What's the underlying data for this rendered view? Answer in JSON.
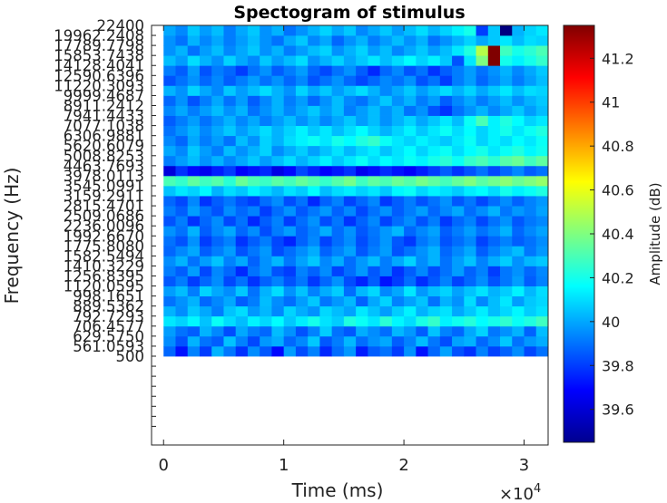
{
  "chart_data": {
    "type": "heatmap",
    "title": "Spectogram of stimulus",
    "xlabel": "Time (ms)",
    "ylabel": "Frequency (Hz)",
    "x_exponent_label": "×10",
    "x_exponent_power": "4",
    "x_tick_labels": [
      "0",
      "1",
      "2",
      "3"
    ],
    "x_tick_values": [
      0,
      10000,
      20000,
      30000
    ],
    "xlim": [
      -1000,
      32000
    ],
    "x_bin_edges": [
      0,
      1000,
      2000,
      3000,
      4000,
      5000,
      6000,
      7000,
      8000,
      9000,
      10000,
      11000,
      12000,
      13000,
      14000,
      15000,
      16000,
      17000,
      18000,
      19000,
      20000,
      21000,
      22000,
      23000,
      24000,
      25000,
      26000,
      27000,
      28000,
      29000,
      30000,
      31000,
      32000
    ],
    "y_tick_labels": [
      "500",
      "561.0593",
      "629.5750",
      "706.4577",
      "792.7293",
      "889.5362",
      "998.1651",
      "1120.0595",
      "1256.8395",
      "1410.3229",
      "1582.5494",
      "1775.8080",
      "1992.6670",
      "2236.0096",
      "2509.0686",
      "2815.4701",
      "3159.2911",
      "3545.0991",
      "3978.0113",
      "4463.7693",
      "5008.8253",
      "5620.6079",
      "6306.9881",
      "7077.1038",
      "7941.4433",
      "8911.2412",
      "9999.4687",
      "11220.3093",
      "12590.6396",
      "14128.4041",
      "15853.7438",
      "17789.7798",
      "19962.2408",
      "22400"
    ],
    "ylim_band_index": [
      0,
      33
    ],
    "y_axis_extra_ticks_below": 7,
    "colorbar": {
      "label": "Amplitude (dB)",
      "ticks": [
        39.6,
        39.8,
        40,
        40.2,
        40.4,
        40.6,
        40.8,
        41,
        41.2
      ],
      "range": [
        39.45,
        41.35
      ],
      "colormap": "jet"
    },
    "values": [
      [
        39.88,
        39.72,
        39.93,
        39.8,
        40.02,
        39.91,
        39.78,
        39.95,
        39.85,
        39.7,
        39.98,
        39.83,
        39.93,
        39.76,
        39.89,
        39.97,
        39.74,
        39.86,
        39.9,
        39.8,
        39.96,
        39.72,
        39.88,
        39.99,
        39.84,
        39.78,
        39.93,
        39.81,
        39.87,
        39.95,
        39.82,
        39.9
      ],
      [
        39.95,
        39.84,
        40.02,
        39.9,
        39.86,
        40.05,
        39.93,
        39.82,
        39.97,
        40.01,
        39.88,
        39.94,
        40.06,
        39.85,
        39.92,
        40.03,
        39.89,
        39.96,
        40.0,
        39.86,
        39.93,
        40.04,
        39.91,
        39.83,
        39.99,
        40.02,
        39.88,
        39.95,
        40.06,
        39.9,
        39.97,
        40.01
      ],
      [
        39.98,
        39.9,
        39.86,
        40.02,
        39.94,
        39.83,
        40.0,
        39.92,
        39.88,
        40.04,
        39.96,
        39.84,
        39.93,
        40.07,
        39.9,
        39.85,
        40.01,
        39.95,
        39.89,
        40.03,
        39.97,
        39.86,
        40.05,
        39.93,
        39.88,
        40.0,
        40.08,
        39.91,
        39.96,
        40.02,
        39.87,
        40.04
      ],
      [
        40.12,
        40.08,
        40.15,
        40.05,
        40.18,
        40.1,
        40.04,
        40.14,
        40.09,
        40.16,
        40.06,
        40.13,
        40.2,
        40.11,
        40.07,
        40.22,
        40.18,
        40.12,
        40.24,
        40.15,
        40.1,
        40.21,
        40.26,
        40.14,
        40.19,
        40.23,
        40.16,
        40.2,
        40.25,
        40.18,
        40.22,
        40.28
      ],
      [
        40.02,
        39.95,
        40.06,
        40.0,
        39.92,
        40.05,
        40.1,
        39.97,
        40.03,
        39.94,
        40.08,
        40.01,
        39.96,
        40.09,
        40.04,
        39.99,
        40.12,
        40.05,
        39.98,
        40.07,
        40.14,
        40.02,
        40.08,
        40.11,
        40.0,
        40.06,
        40.13,
        40.04,
        40.09,
        40.15,
        40.07,
        40.11
      ],
      [
        39.9,
        39.96,
        40.02,
        39.88,
        39.94,
        40.0,
        39.86,
        39.92,
        40.04,
        39.95,
        39.89,
        39.98,
        40.06,
        39.91,
        39.97,
        40.03,
        39.87,
        40.0,
        40.08,
        39.93,
        39.99,
        40.05,
        39.9,
        40.02,
        39.96,
        40.1,
        39.94,
        40.04,
        40.12,
        39.98,
        40.06,
        40.09
      ],
      [
        39.98,
        40.04,
        39.92,
        40.08,
        40.0,
        39.95,
        40.06,
        39.9,
        40.02,
        40.1,
        39.96,
        40.05,
        39.93,
        40.01,
        40.07,
        39.89,
        40.03,
        40.09,
        39.94,
        40.0,
        40.12,
        39.97,
        40.04,
        40.08,
        39.99,
        40.05,
        40.11,
        40.02,
        40.07,
        40.14,
        40.03,
        40.1
      ],
      [
        39.85,
        39.92,
        39.8,
        39.88,
        39.95,
        39.82,
        39.9,
        39.78,
        39.87,
        39.93,
        39.84,
        39.91,
        39.79,
        39.88,
        39.96,
        39.83,
        39.75,
        39.86,
        39.72,
        39.8,
        39.89,
        39.77,
        39.85,
        39.93,
        39.81,
        39.88,
        39.95,
        39.84,
        39.91,
        39.98,
        39.86,
        39.93
      ],
      [
        39.92,
        39.86,
        39.98,
        39.82,
        39.94,
        39.88,
        39.76,
        39.9,
        39.96,
        39.84,
        39.8,
        39.93,
        39.87,
        39.95,
        39.81,
        39.89,
        39.97,
        39.85,
        39.92,
        39.78,
        39.86,
        39.94,
        39.83,
        39.9,
        39.98,
        39.87,
        39.93,
        39.8,
        39.91,
        39.96,
        39.88,
        39.94
      ],
      [
        39.95,
        40.02,
        39.9,
        39.98,
        40.05,
        39.93,
        40.0,
        39.87,
        39.96,
        40.03,
        39.91,
        39.99,
        40.06,
        39.94,
        40.01,
        39.89,
        39.97,
        40.04,
        39.92,
        40.0,
        40.08,
        39.95,
        40.02,
        39.9,
        39.98,
        40.05,
        39.93,
        40.01,
        40.07,
        39.96,
        40.03,
        40.06
      ],
      [
        39.88,
        39.94,
        40.0,
        39.86,
        39.92,
        39.98,
        39.84,
        39.91,
        39.97,
        39.83,
        39.89,
        39.95,
        40.01,
        39.87,
        39.93,
        39.99,
        39.85,
        39.92,
        39.98,
        39.84,
        39.9,
        39.96,
        40.02,
        39.88,
        39.94,
        40.0,
        39.86,
        39.93,
        39.99,
        40.04,
        39.91,
        39.97
      ],
      [
        39.9,
        39.84,
        39.96,
        39.8,
        39.88,
        39.93,
        39.78,
        39.86,
        39.92,
        39.82,
        39.75,
        39.87,
        39.94,
        39.81,
        39.89,
        39.95,
        39.83,
        39.9,
        39.97,
        39.85,
        39.79,
        39.91,
        39.96,
        39.84,
        39.89,
        39.94,
        39.81,
        39.88,
        39.93,
        39.86,
        39.9,
        39.95
      ],
      [
        39.96,
        39.9,
        40.02,
        39.86,
        39.94,
        40.0,
        39.88,
        39.95,
        39.83,
        39.92,
        39.98,
        39.87,
        39.93,
        40.01,
        39.89,
        39.96,
        39.85,
        39.91,
        39.97,
        40.03,
        39.88,
        39.94,
        39.99,
        39.86,
        39.92,
        39.98,
        39.9,
        39.95,
        40.02,
        39.88,
        39.94,
        39.99
      ],
      [
        39.84,
        39.92,
        39.78,
        39.88,
        39.95,
        39.82,
        39.9,
        39.76,
        39.86,
        39.93,
        39.8,
        39.89,
        39.96,
        39.83,
        39.91,
        39.78,
        39.87,
        39.94,
        39.81,
        39.89,
        39.95,
        39.84,
        39.92,
        39.79,
        39.88,
        39.93,
        39.82,
        39.9,
        39.96,
        39.85,
        39.91,
        39.94
      ],
      [
        39.92,
        39.86,
        39.98,
        39.9,
        39.84,
        39.95,
        39.88,
        39.93,
        39.8,
        39.89,
        39.96,
        39.85,
        39.91,
        39.97,
        39.87,
        39.94,
        39.82,
        39.9,
        39.96,
        39.86,
        39.92,
        39.98,
        39.88,
        39.94,
        40.0,
        39.89,
        39.95,
        40.02,
        39.91,
        39.97,
        39.93,
        39.99
      ],
      [
        39.88,
        39.82,
        39.94,
        39.78,
        39.86,
        39.91,
        39.84,
        39.8,
        39.89,
        39.95,
        39.83,
        39.9,
        39.76,
        39.87,
        39.93,
        39.81,
        39.88,
        39.94,
        39.79,
        39.86,
        39.92,
        39.84,
        39.9,
        39.96,
        39.85,
        39.91,
        39.82,
        39.89,
        39.95,
        39.87,
        39.93,
        39.97
      ],
      [
        40.05,
        40.12,
        40.08,
        40.15,
        40.02,
        40.1,
        40.06,
        40.14,
        40.09,
        40.03,
        40.11,
        40.07,
        40.16,
        40.04,
        40.1,
        40.13,
        40.08,
        40.12,
        40.06,
        40.15,
        40.18,
        40.09,
        40.14,
        40.11,
        40.07,
        40.13,
        40.16,
        40.1,
        40.2,
        40.14,
        40.18,
        40.22
      ],
      [
        40.3,
        40.26,
        40.34,
        40.28,
        40.32,
        40.24,
        40.36,
        40.3,
        40.27,
        40.33,
        40.29,
        40.35,
        40.31,
        40.26,
        40.32,
        40.38,
        40.28,
        40.34,
        40.3,
        40.36,
        40.32,
        40.38,
        40.34,
        40.29,
        40.35,
        40.4,
        40.33,
        40.37,
        40.42,
        40.36,
        40.4,
        40.44
      ],
      [
        39.62,
        39.78,
        39.7,
        39.66,
        39.74,
        39.8,
        39.68,
        39.72,
        39.76,
        39.64,
        39.7,
        39.82,
        39.75,
        39.69,
        39.73,
        39.78,
        39.66,
        39.71,
        39.77,
        39.72,
        39.68,
        39.74,
        39.8,
        39.86,
        39.78,
        39.84,
        39.9,
        39.82,
        39.88,
        39.94,
        39.86,
        39.9
      ],
      [
        39.92,
        39.98,
        40.04,
        39.96,
        40.02,
        39.94,
        40.0,
        40.06,
        39.98,
        40.04,
        40.1,
        40.02,
        40.08,
        40.14,
        40.06,
        40.12,
        40.18,
        40.1,
        40.16,
        40.12,
        40.18,
        40.14,
        40.2,
        40.24,
        40.18,
        40.26,
        40.3,
        40.24,
        40.32,
        40.36,
        40.28,
        40.34
      ],
      [
        40.0,
        39.94,
        40.06,
        39.98,
        39.92,
        40.04,
        39.96,
        40.02,
        40.08,
        39.95,
        40.01,
        40.07,
        39.99,
        40.05,
        40.11,
        40.03,
        40.09,
        40.13,
        40.05,
        40.11,
        40.16,
        40.08,
        40.14,
        40.18,
        40.1,
        40.16,
        40.2,
        40.12,
        40.18,
        40.22,
        40.15,
        40.19
      ],
      [
        39.94,
        39.88,
        40.0,
        39.92,
        39.98,
        39.9,
        40.04,
        39.96,
        40.08,
        40.02,
        40.1,
        40.14,
        40.18,
        40.12,
        40.2,
        40.16,
        40.22,
        40.26,
        40.18,
        40.12,
        40.08,
        40.14,
        40.1,
        40.06,
        40.12,
        40.18,
        40.08,
        40.14,
        40.1,
        40.16,
        40.12,
        40.18
      ],
      [
        39.9,
        39.96,
        40.02,
        39.94,
        40.0,
        40.06,
        39.98,
        40.04,
        40.1,
        40.02,
        40.08,
        40.14,
        40.06,
        40.12,
        40.04,
        40.1,
        40.16,
        40.08,
        40.02,
        40.08,
        40.14,
        40.06,
        40.12,
        40.18,
        40.1,
        40.16,
        40.08,
        40.14,
        40.2,
        40.12,
        40.18,
        40.22
      ],
      [
        39.86,
        39.92,
        39.98,
        39.9,
        39.96,
        40.02,
        39.94,
        40.0,
        39.92,
        39.98,
        40.04,
        39.96,
        40.02,
        39.94,
        40.0,
        40.06,
        39.98,
        40.04,
        39.96,
        40.02,
        40.08,
        40.0,
        40.06,
        40.12,
        40.04,
        40.18,
        40.3,
        40.14,
        40.22,
        40.16,
        40.08,
        40.12
      ],
      [
        39.94,
        40.0,
        39.92,
        39.98,
        40.04,
        39.96,
        40.02,
        39.9,
        39.96,
        40.02,
        39.94,
        40.0,
        40.06,
        39.98,
        40.04,
        39.92,
        39.98,
        40.04,
        39.96,
        40.02,
        39.9,
        39.96,
        39.84,
        39.78,
        39.9,
        39.96,
        40.02,
        39.94,
        40.0,
        40.06,
        39.98,
        40.04
      ],
      [
        39.88,
        39.96,
        39.84,
        39.92,
        40.0,
        39.9,
        39.98,
        39.86,
        39.94,
        40.02,
        39.92,
        39.98,
        39.88,
        39.96,
        40.04,
        39.94,
        39.9,
        39.98,
        40.06,
        39.96,
        40.02,
        39.92,
        39.98,
        39.86,
        39.94,
        40.0,
        39.92,
        39.98,
        40.04,
        39.96,
        40.02,
        40.06
      ],
      [
        40.02,
        39.96,
        40.08,
        40.0,
        39.94,
        40.06,
        39.98,
        40.04,
        40.1,
        40.02,
        39.96,
        40.08,
        40.0,
        40.06,
        39.98,
        40.04,
        40.1,
        40.02,
        39.94,
        40.0,
        40.06,
        39.98,
        40.04,
        40.1,
        40.02,
        40.08,
        40.0,
        40.06,
        40.12,
        40.04,
        40.1,
        40.08
      ],
      [
        39.84,
        39.9,
        39.96,
        39.88,
        39.94,
        39.86,
        39.92,
        39.98,
        39.9,
        39.96,
        39.88,
        39.94,
        39.84,
        39.9,
        39.96,
        39.88,
        39.82,
        39.88,
        39.94,
        39.9,
        39.96,
        39.84,
        39.9,
        39.8,
        39.92,
        39.98,
        39.88,
        39.94,
        40.0,
        39.92,
        39.98,
        40.04
      ],
      [
        39.92,
        39.86,
        39.98,
        39.84,
        39.92,
        39.88,
        39.8,
        39.9,
        39.96,
        39.86,
        39.92,
        39.98,
        39.88,
        39.82,
        39.9,
        39.96,
        39.86,
        39.76,
        39.88,
        39.94,
        39.84,
        39.9,
        39.78,
        39.86,
        39.92,
        39.98,
        39.9,
        39.96,
        40.02,
        39.94,
        40.0,
        40.06
      ],
      [
        40.04,
        39.98,
        40.1,
        40.02,
        39.96,
        40.08,
        40.0,
        39.94,
        40.06,
        39.98,
        40.04,
        40.1,
        39.96,
        40.02,
        40.08,
        40.0,
        40.06,
        40.12,
        40.04,
        40.1,
        40.16,
        40.08,
        40.14,
        40.06,
        39.84,
        40.12,
        40.4,
        41.35,
        40.2,
        40.14,
        40.2,
        40.26
      ],
      [
        39.96,
        40.02,
        39.9,
        39.98,
        40.04,
        39.94,
        40.0,
        40.06,
        39.96,
        40.02,
        39.92,
        39.98,
        40.04,
        40.08,
        39.96,
        40.02,
        40.08,
        39.98,
        40.04,
        39.94,
        40.0,
        40.06,
        39.98,
        40.04,
        40.12,
        40.22,
        40.5,
        41.35,
        40.28,
        40.2,
        40.24,
        40.3
      ],
      [
        39.96,
        39.9,
        40.02,
        39.94,
        40.0,
        39.92,
        39.98,
        40.04,
        39.96,
        39.9,
        40.0,
        40.06,
        39.94,
        40.0,
        39.88,
        39.96,
        40.02,
        39.92,
        39.98,
        40.04,
        39.96,
        40.02,
        39.9,
        39.96,
        40.02,
        40.08,
        40.0,
        40.06,
        40.12,
        40.04,
        40.1,
        40.08
      ],
      [
        40.0,
        39.94,
        40.06,
        39.98,
        40.04,
        39.92,
        40.0,
        40.06,
        39.96,
        40.02,
        39.9,
        39.96,
        40.02,
        40.08,
        40.0,
        40.06,
        39.94,
        40.0,
        40.06,
        39.98,
        40.04,
        40.1,
        40.02,
        40.08,
        40.14,
        40.2,
        39.8,
        40.06,
        39.45,
        40.02,
        40.08,
        40.12
      ]
    ]
  }
}
